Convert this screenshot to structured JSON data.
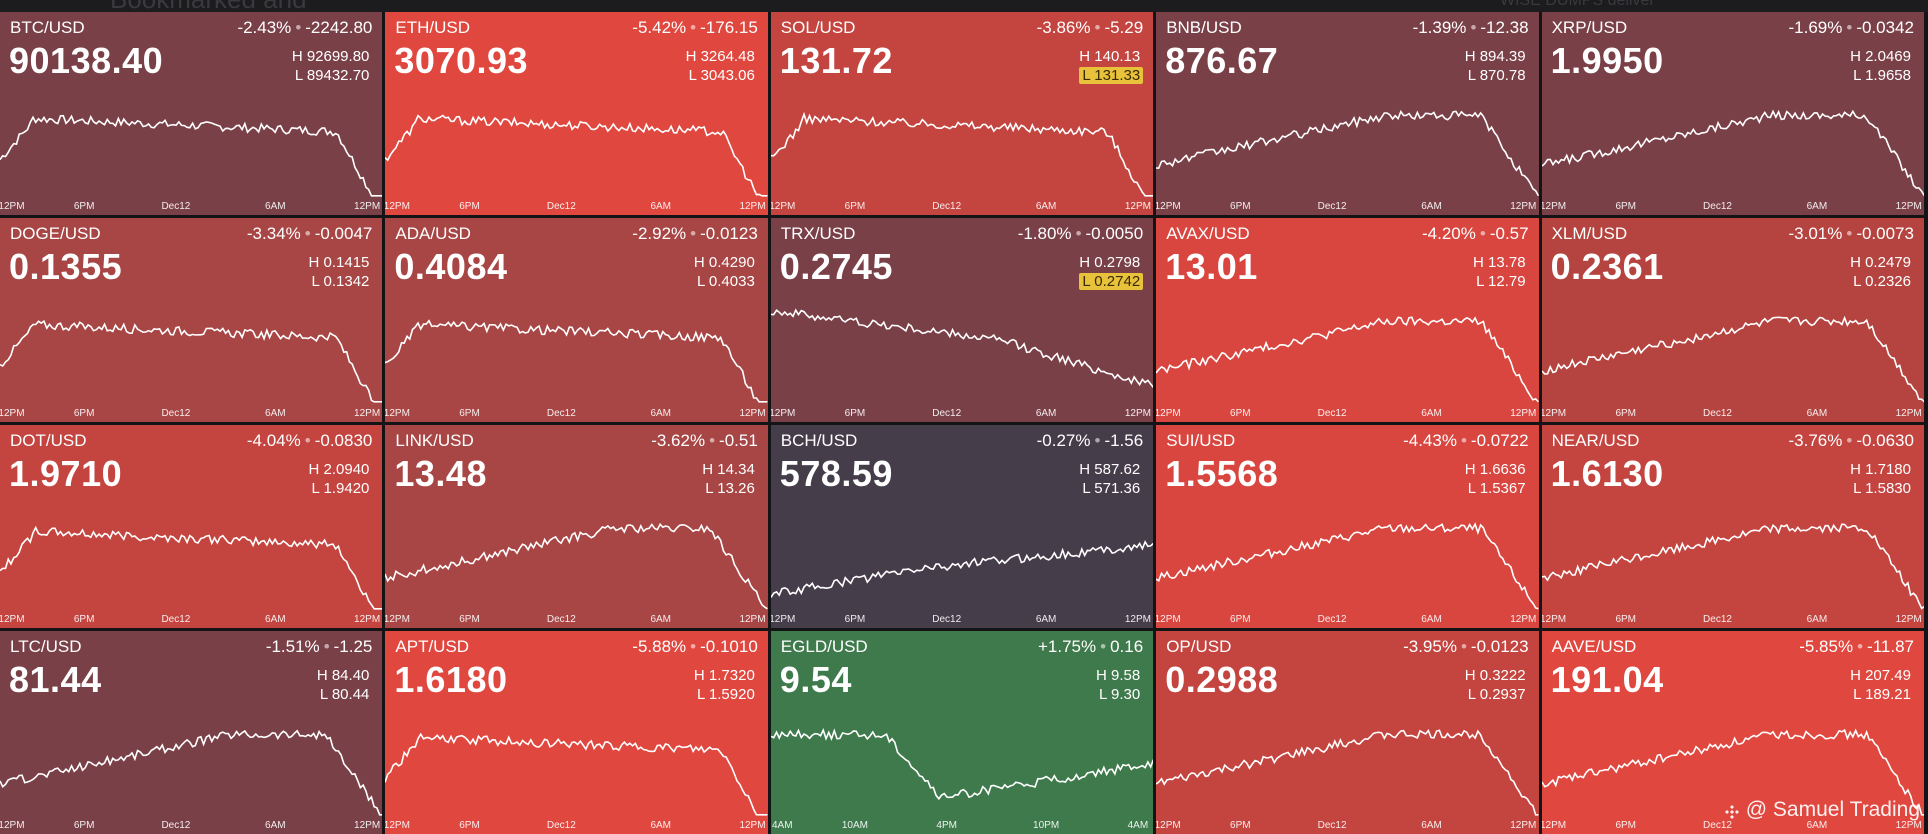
{
  "header": {
    "ghost_left": "Bookmarked and",
    "ghost_right": "WISE DUMPS deliver"
  },
  "watermark": {
    "handle": "@ Samuel Trading",
    "icon": "binance-diamond-icon"
  },
  "colors": {
    "strong_red": "#e0473f",
    "red": "#c4443f",
    "muted_red": "#a84545",
    "maroon": "#7a4048",
    "dark_slate": "#463d4b",
    "green": "#3f7a4c",
    "low_highlight": "#e8c23a"
  },
  "tiles": [
    {
      "symbol": "BTC/USD",
      "change_pct": "-2.43%",
      "change_abs": "-2242.80",
      "price": "90138.40",
      "high": "H 92699.80",
      "low": "L 89432.70",
      "low_highlight": false,
      "bg": "#7a4048",
      "trend": "fall_end",
      "axis": [
        "12PM",
        "6PM",
        "Dec12",
        "6AM",
        "12PM"
      ]
    },
    {
      "symbol": "ETH/USD",
      "change_pct": "-5.42%",
      "change_abs": "-176.15",
      "price": "3070.93",
      "high": "H 3264.48",
      "low": "L 3043.06",
      "low_highlight": false,
      "bg": "#e0473f",
      "trend": "fall_end",
      "axis": [
        "12PM",
        "6PM",
        "Dec12",
        "6AM",
        "12PM"
      ]
    },
    {
      "symbol": "SOL/USD",
      "change_pct": "-3.86%",
      "change_abs": "-5.29",
      "price": "131.72",
      "high": "H 140.13",
      "low": "L 131.33",
      "low_highlight": true,
      "bg": "#c4443f",
      "trend": "fall_end",
      "axis": [
        "12PM",
        "6PM",
        "Dec12",
        "6AM",
        "12PM"
      ]
    },
    {
      "symbol": "BNB/USD",
      "change_pct": "-1.39%",
      "change_abs": "-12.38",
      "price": "876.67",
      "high": "H 894.39",
      "low": "L 870.78",
      "low_highlight": false,
      "bg": "#7a4048",
      "trend": "rise_fall",
      "axis": [
        "12PM",
        "6PM",
        "Dec12",
        "6AM",
        "12PM"
      ]
    },
    {
      "symbol": "XRP/USD",
      "change_pct": "-1.69%",
      "change_abs": "-0.0342",
      "price": "1.9950",
      "high": "H 2.0469",
      "low": "L 1.9658",
      "low_highlight": false,
      "bg": "#7a4048",
      "trend": "rise_fall",
      "axis": [
        "12PM",
        "6PM",
        "Dec12",
        "6AM",
        "12PM"
      ]
    },
    {
      "symbol": "DOGE/USD",
      "change_pct": "-3.34%",
      "change_abs": "-0.0047",
      "price": "0.1355",
      "high": "H 0.1415",
      "low": "L 0.1342",
      "low_highlight": false,
      "bg": "#a84545",
      "trend": "fall_end",
      "axis": [
        "12PM",
        "6PM",
        "Dec12",
        "6AM",
        "12PM"
      ]
    },
    {
      "symbol": "ADA/USD",
      "change_pct": "-2.92%",
      "change_abs": "-0.0123",
      "price": "0.4084",
      "high": "H 0.4290",
      "low": "L 0.4033",
      "low_highlight": false,
      "bg": "#a84545",
      "trend": "fall_end",
      "axis": [
        "12PM",
        "6PM",
        "Dec12",
        "6AM",
        "12PM"
      ]
    },
    {
      "symbol": "TRX/USD",
      "change_pct": "-1.80%",
      "change_abs": "-0.0050",
      "price": "0.2745",
      "high": "H 0.2798",
      "low": "L 0.2742",
      "low_highlight": true,
      "bg": "#7a4048",
      "trend": "steady_fall",
      "axis": [
        "12PM",
        "6PM",
        "Dec12",
        "6AM",
        "12PM"
      ]
    },
    {
      "symbol": "AVAX/USD",
      "change_pct": "-4.20%",
      "change_abs": "-0.57",
      "price": "13.01",
      "high": "H 13.78",
      "low": "L 12.79",
      "low_highlight": false,
      "bg": "#d9453f",
      "trend": "rise_fall",
      "axis": [
        "12PM",
        "6PM",
        "Dec12",
        "6AM",
        "12PM"
      ]
    },
    {
      "symbol": "XLM/USD",
      "change_pct": "-3.01%",
      "change_abs": "-0.0073",
      "price": "0.2361",
      "high": "H 0.2479",
      "low": "L 0.2326",
      "low_highlight": false,
      "bg": "#b54440",
      "trend": "rise_fall",
      "axis": [
        "12PM",
        "6PM",
        "Dec12",
        "6AM",
        "12PM"
      ]
    },
    {
      "symbol": "DOT/USD",
      "change_pct": "-4.04%",
      "change_abs": "-0.0830",
      "price": "1.9710",
      "high": "H 2.0940",
      "low": "L 1.9420",
      "low_highlight": false,
      "bg": "#c4443f",
      "trend": "fall_end",
      "axis": [
        "12PM",
        "6PM",
        "Dec12",
        "6AM",
        "12PM"
      ]
    },
    {
      "symbol": "LINK/USD",
      "change_pct": "-3.62%",
      "change_abs": "-0.51",
      "price": "13.48",
      "high": "H 14.34",
      "low": "L 13.26",
      "low_highlight": false,
      "bg": "#a84545",
      "trend": "rise_fall",
      "axis": [
        "12PM",
        "6PM",
        "Dec12",
        "6AM",
        "12PM"
      ]
    },
    {
      "symbol": "BCH/USD",
      "change_pct": "-0.27%",
      "change_abs": "-1.56",
      "price": "578.59",
      "high": "H 587.62",
      "low": "L 571.36",
      "low_highlight": false,
      "bg": "#463d4b",
      "trend": "rise",
      "axis": [
        "12PM",
        "6PM",
        "Dec12",
        "6AM",
        "12PM"
      ]
    },
    {
      "symbol": "SUI/USD",
      "change_pct": "-4.43%",
      "change_abs": "-0.0722",
      "price": "1.5568",
      "high": "H 1.6636",
      "low": "L 1.5367",
      "low_highlight": false,
      "bg": "#d9453f",
      "trend": "rise_fall",
      "axis": [
        "12PM",
        "6PM",
        "Dec12",
        "6AM",
        "12PM"
      ]
    },
    {
      "symbol": "NEAR/USD",
      "change_pct": "-3.76%",
      "change_abs": "-0.0630",
      "price": "1.6130",
      "high": "H 1.7180",
      "low": "L 1.5830",
      "low_highlight": false,
      "bg": "#c4443f",
      "trend": "rise_fall",
      "axis": [
        "12PM",
        "6PM",
        "Dec12",
        "6AM",
        "12PM"
      ]
    },
    {
      "symbol": "LTC/USD",
      "change_pct": "-1.51%",
      "change_abs": "-1.25",
      "price": "81.44",
      "high": "H 84.40",
      "low": "L 80.44",
      "low_highlight": false,
      "bg": "#7a4048",
      "trend": "rise_fall",
      "axis": [
        "12PM",
        "6PM",
        "Dec12",
        "6AM",
        "12PM"
      ]
    },
    {
      "symbol": "APT/USD",
      "change_pct": "-5.88%",
      "change_abs": "-0.1010",
      "price": "1.6180",
      "high": "H 1.7320",
      "low": "L 1.5920",
      "low_highlight": false,
      "bg": "#e0473f",
      "trend": "fall_end",
      "axis": [
        "12PM",
        "6PM",
        "Dec12",
        "6AM",
        "12PM"
      ]
    },
    {
      "symbol": "EGLD/USD",
      "change_pct": "+1.75%",
      "change_abs": "0.16",
      "price": "9.54",
      "high": "H 9.58",
      "low": "L 9.30",
      "low_highlight": false,
      "bg": "#3f7a4c",
      "trend": "dip_recover",
      "axis": [
        "4AM",
        "10AM",
        "4PM",
        "10PM",
        "4AM"
      ]
    },
    {
      "symbol": "OP/USD",
      "change_pct": "-3.95%",
      "change_abs": "-0.0123",
      "price": "0.2988",
      "high": "H 0.3222",
      "low": "L 0.2937",
      "low_highlight": false,
      "bg": "#c4443f",
      "trend": "rise_fall",
      "axis": [
        "12PM",
        "6PM",
        "Dec12",
        "6AM",
        "12PM"
      ]
    },
    {
      "symbol": "AAVE/USD",
      "change_pct": "-5.85%",
      "change_abs": "-11.87",
      "price": "191.04",
      "high": "H 207.49",
      "low": "L 189.21",
      "low_highlight": false,
      "bg": "#e0473f",
      "trend": "rise_fall",
      "axis": [
        "12PM",
        "6PM",
        "Dec12",
        "6AM",
        "12PM"
      ]
    }
  ]
}
